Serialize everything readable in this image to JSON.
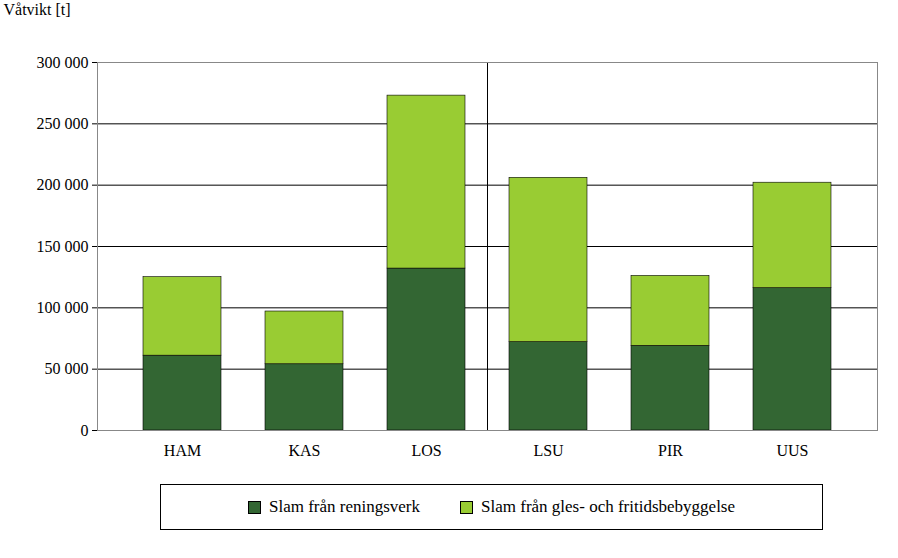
{
  "chart_data": {
    "type": "bar",
    "stacked": true,
    "y_label": "Våtvikt [t]",
    "categories": [
      "HAM",
      "KAS",
      "LOS",
      "LSU",
      "PIR",
      "UUS"
    ],
    "series": [
      {
        "name": "Slam från reningsverk",
        "color": "#336633",
        "values": [
          61000,
          54000,
          132000,
          72000,
          69000,
          116000
        ]
      },
      {
        "name": "Slam från gles- och fritidsbebyggelse",
        "color": "#99cc33",
        "values": [
          64000,
          43000,
          141000,
          134000,
          57000,
          86000
        ]
      }
    ],
    "ylim": [
      0,
      300000
    ],
    "yticks": [
      0,
      {
        "value": 50000,
        "label": "50 000"
      },
      {
        "value": 100000,
        "label": "100 000"
      },
      {
        "value": 150000,
        "label": "150 000"
      },
      {
        "value": 200000,
        "label": "200 000"
      },
      {
        "value": 250000,
        "label": "250 000"
      },
      {
        "value": 300000,
        "label": "300 000"
      }
    ],
    "grid": true,
    "legend": "bottom"
  }
}
